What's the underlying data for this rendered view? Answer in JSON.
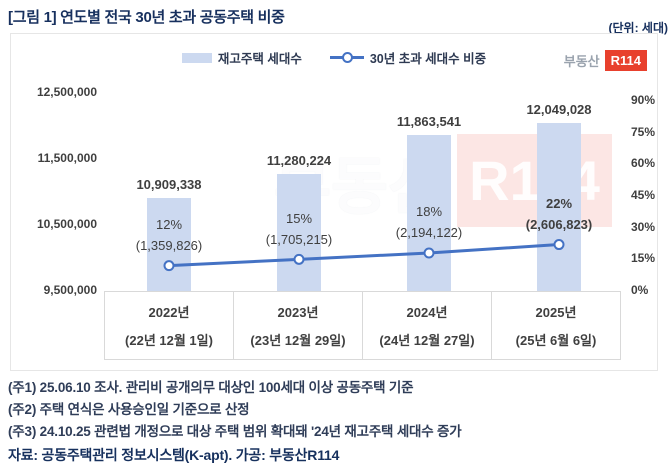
{
  "header": {
    "title": "[그림 1] 연도별 전국 30년 초과 공동주택 비중",
    "unit_note": "(단위: 세대)"
  },
  "legend": {
    "bar_label": "재고주택 세대수",
    "line_label": "30년 초과 세대수 비중"
  },
  "brand": {
    "prefix": "부동산",
    "logo": "R114"
  },
  "watermark": {
    "prefix": "부동산",
    "logo": "R114"
  },
  "chart_data": {
    "type": "bar+line",
    "title": "연도별 전국 30년 초과 공동주택 비중",
    "grid": false,
    "legend_position": "top-center",
    "categories": [
      {
        "year": "2022년",
        "date": "(22년 12월 1일)"
      },
      {
        "year": "2023년",
        "date": "(23년 12월 29일)"
      },
      {
        "year": "2024년",
        "date": "(24년 12월 27일)"
      },
      {
        "year": "2025년",
        "date": "(25년 6월 6일)"
      }
    ],
    "series": [
      {
        "name": "재고주택 세대수",
        "type": "bar",
        "axis": "left",
        "color": "#ccd9f0",
        "values": [
          10909338,
          11280224,
          11863541,
          12049028
        ],
        "labels": [
          "10,909,338",
          "11,280,224",
          "11,863,541",
          "12,049,028"
        ]
      },
      {
        "name": "30년 초과 세대수 비중",
        "type": "line",
        "axis": "right",
        "color": "#4472c4",
        "values_pct": [
          12,
          15,
          18,
          22
        ],
        "values_count": [
          1359826,
          1705215,
          2194122,
          2606823
        ],
        "pct_labels": [
          "12%",
          "15%",
          "18%",
          "22%"
        ],
        "count_labels": [
          "(1,359,826)",
          "(1,705,215)",
          "(2,194,122)",
          "(2,606,823)"
        ],
        "emphasis_index": 3
      }
    ],
    "left_axis": {
      "ticks": [
        "12,500,000",
        "11,500,000",
        "10,500,000",
        "9,500,000"
      ],
      "tick_values": [
        12500000,
        11500000,
        10500000,
        9500000
      ],
      "range": [
        9500000,
        12606000
      ]
    },
    "right_axis": {
      "ticks": [
        "90%",
        "75%",
        "60%",
        "45%",
        "30%",
        "15%",
        "0%"
      ],
      "tick_values": [
        90,
        75,
        60,
        45,
        30,
        15,
        0
      ],
      "range": [
        0,
        97.1
      ]
    }
  },
  "footnotes": [
    "(주1) 25.06.10 조사. 관리비 공개의무 대상인 100세대 이상 공동주택 기준",
    "(주2) 주택 연식은 사용승인일 기준으로 산정",
    "(주3) 24.10.25 관련법 개정으로 대상 주택 범위 확대돼 '24년 재고주택 세대수 증가"
  ],
  "source": "자료: 공동주택관리 정보시스템(K-apt). 가공: 부동산R114"
}
